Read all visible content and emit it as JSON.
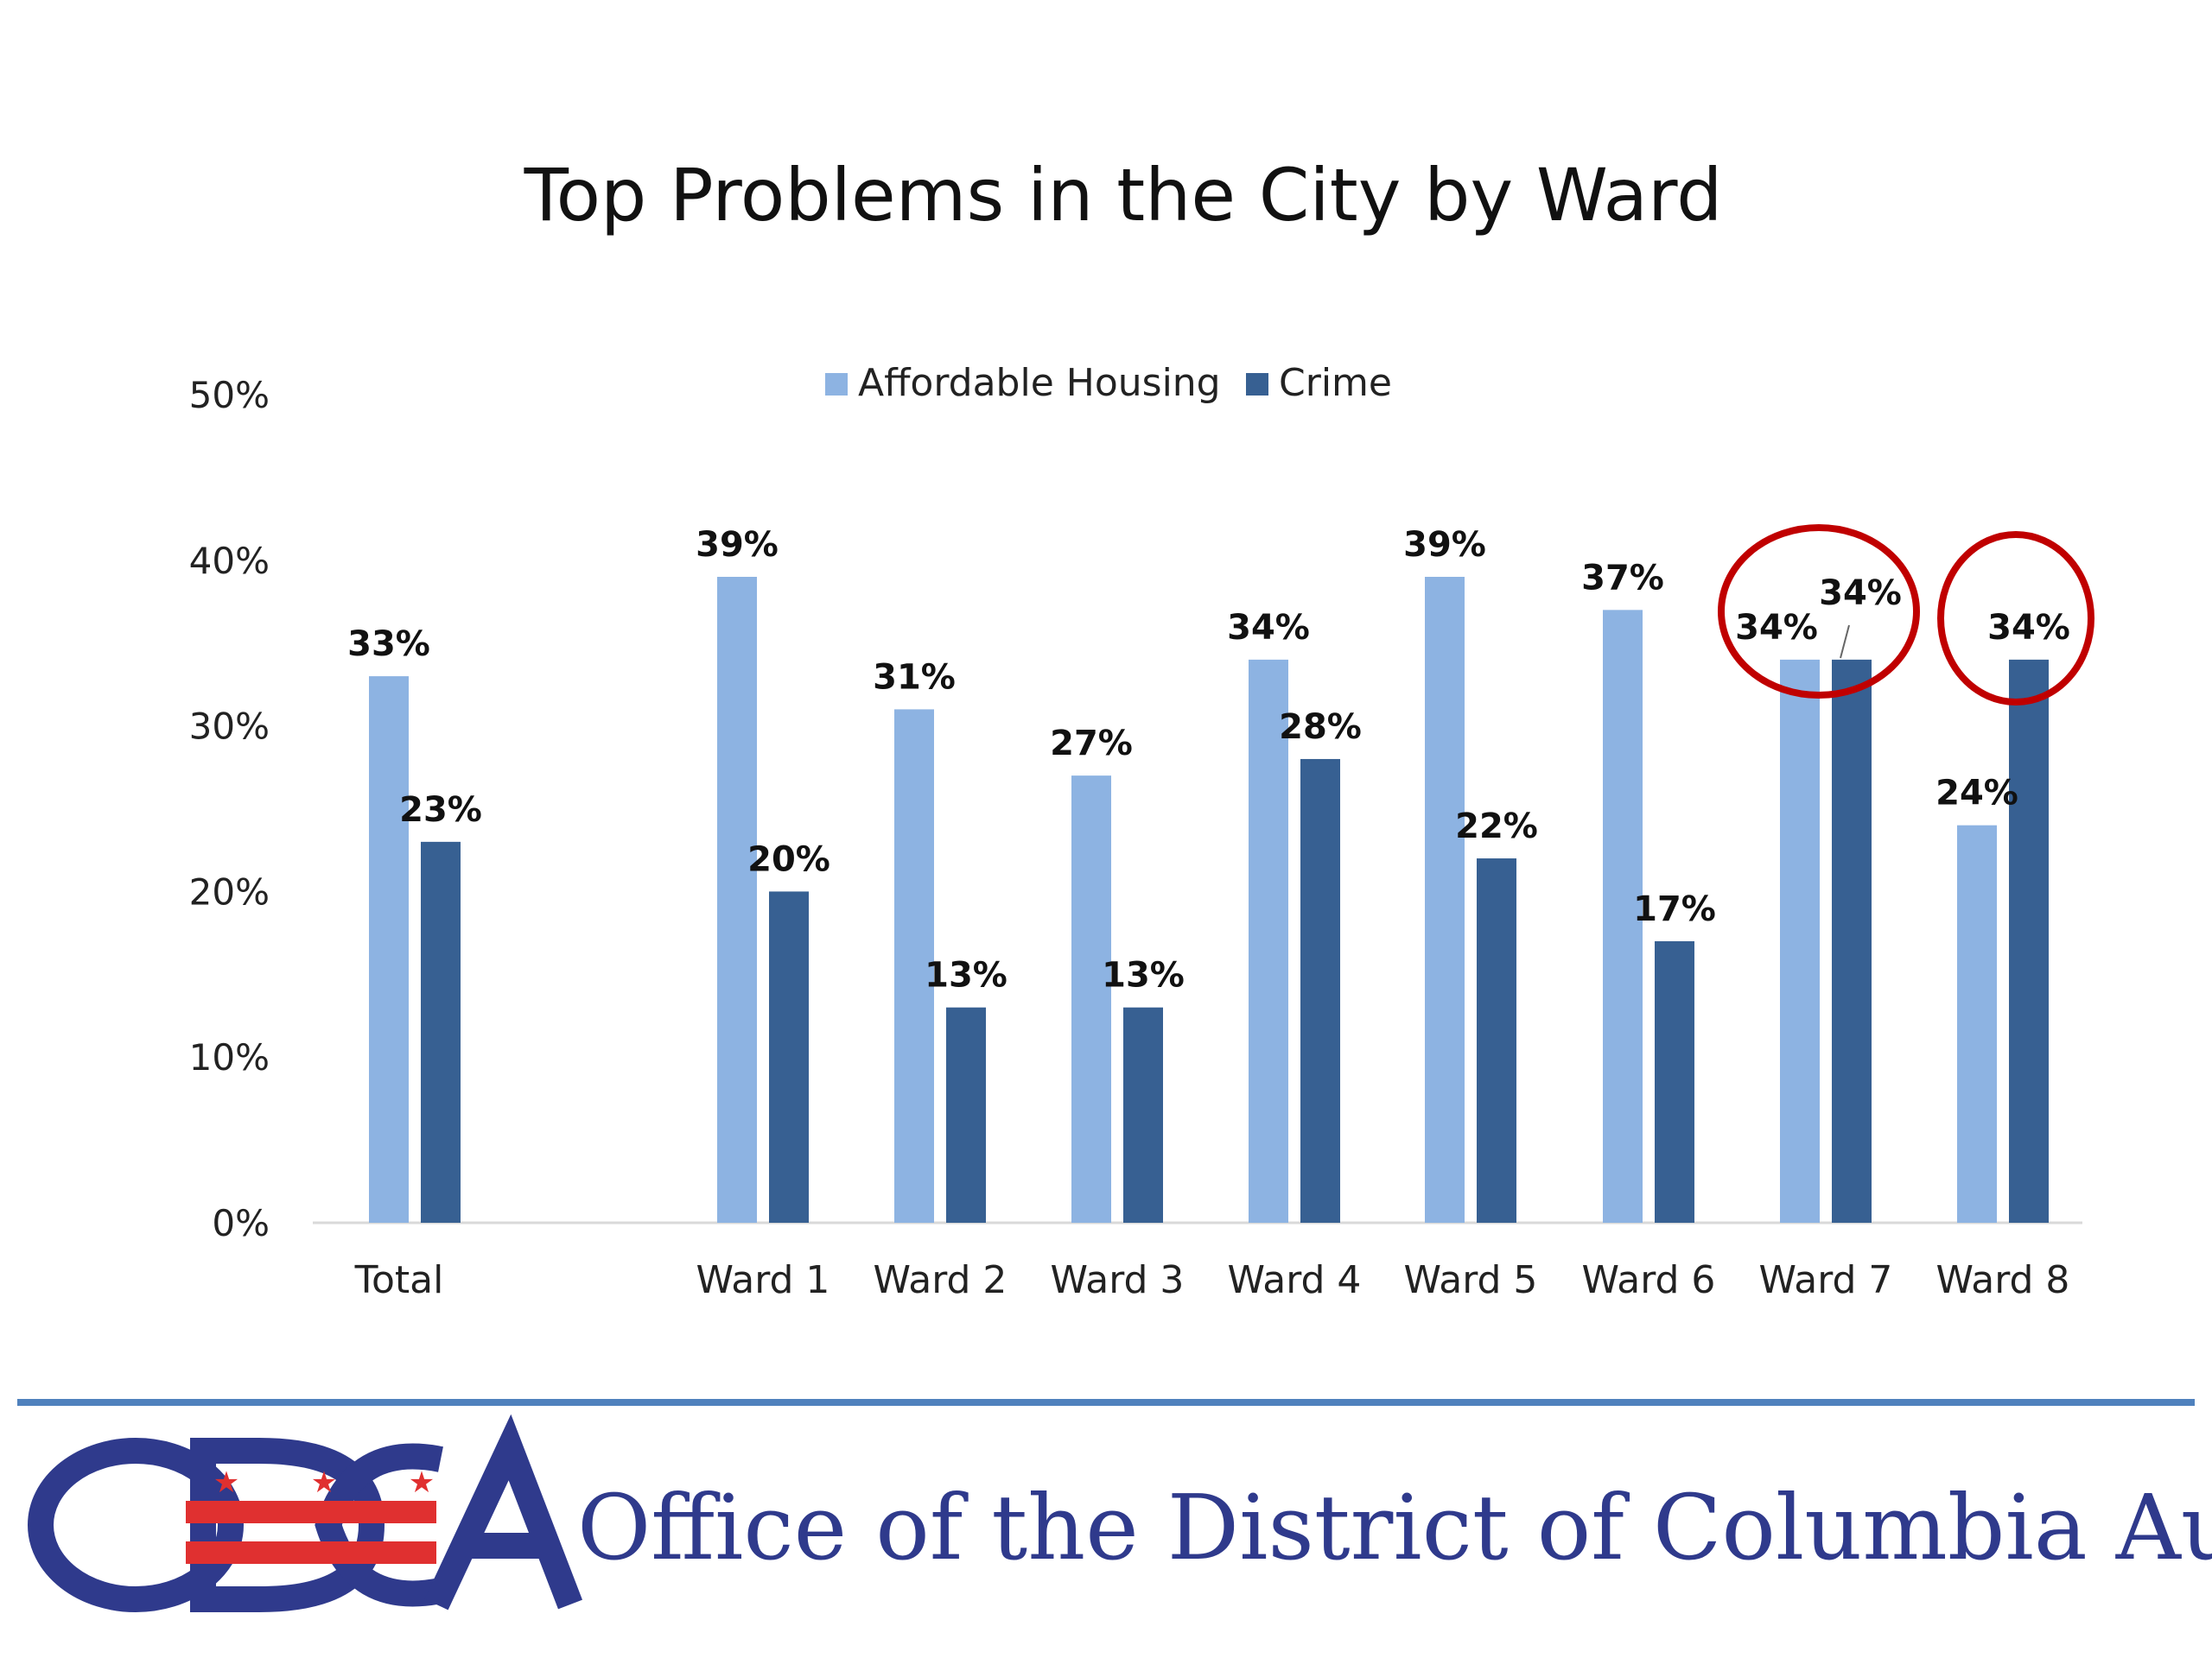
{
  "chart_data": {
    "type": "bar",
    "title": "Top Problems in the City by Ward",
    "categories": [
      "Total",
      "Ward 1",
      "Ward 2",
      "Ward 3",
      "Ward 4",
      "Ward 5",
      "Ward 6",
      "Ward 7",
      "Ward 8"
    ],
    "series": [
      {
        "name": "Affordable Housing",
        "color": "#8db3e2",
        "values": [
          33,
          39,
          31,
          27,
          34,
          39,
          37,
          34,
          24
        ],
        "labels": [
          "33%",
          "39%",
          "31%",
          "27%",
          "34%",
          "39%",
          "37%",
          "34%",
          "24%"
        ]
      },
      {
        "name": "Crime",
        "color": "#376092",
        "values": [
          23,
          20,
          13,
          13,
          28,
          22,
          17,
          34,
          34
        ],
        "labels": [
          "23%",
          "20%",
          "13%",
          "13%",
          "28%",
          "22%",
          "17%",
          "34%",
          "34%"
        ]
      }
    ],
    "y_ticks": [
      "0%",
      "10%",
      "20%",
      "30%",
      "40%",
      "50%"
    ],
    "ylim": [
      0,
      50
    ],
    "grid": false,
    "legend_position": "top-center",
    "highlighted_categories": [
      "Ward 7",
      "Ward 8"
    ],
    "highlight_color": "#c00000"
  },
  "footer": {
    "logo_text": "ODCA",
    "organization": "Office of the District of Columbia Auditor",
    "rule_color": "#4f81bd",
    "logo_color": "#2f3a8c",
    "logo_accent_color": "#e03030"
  }
}
